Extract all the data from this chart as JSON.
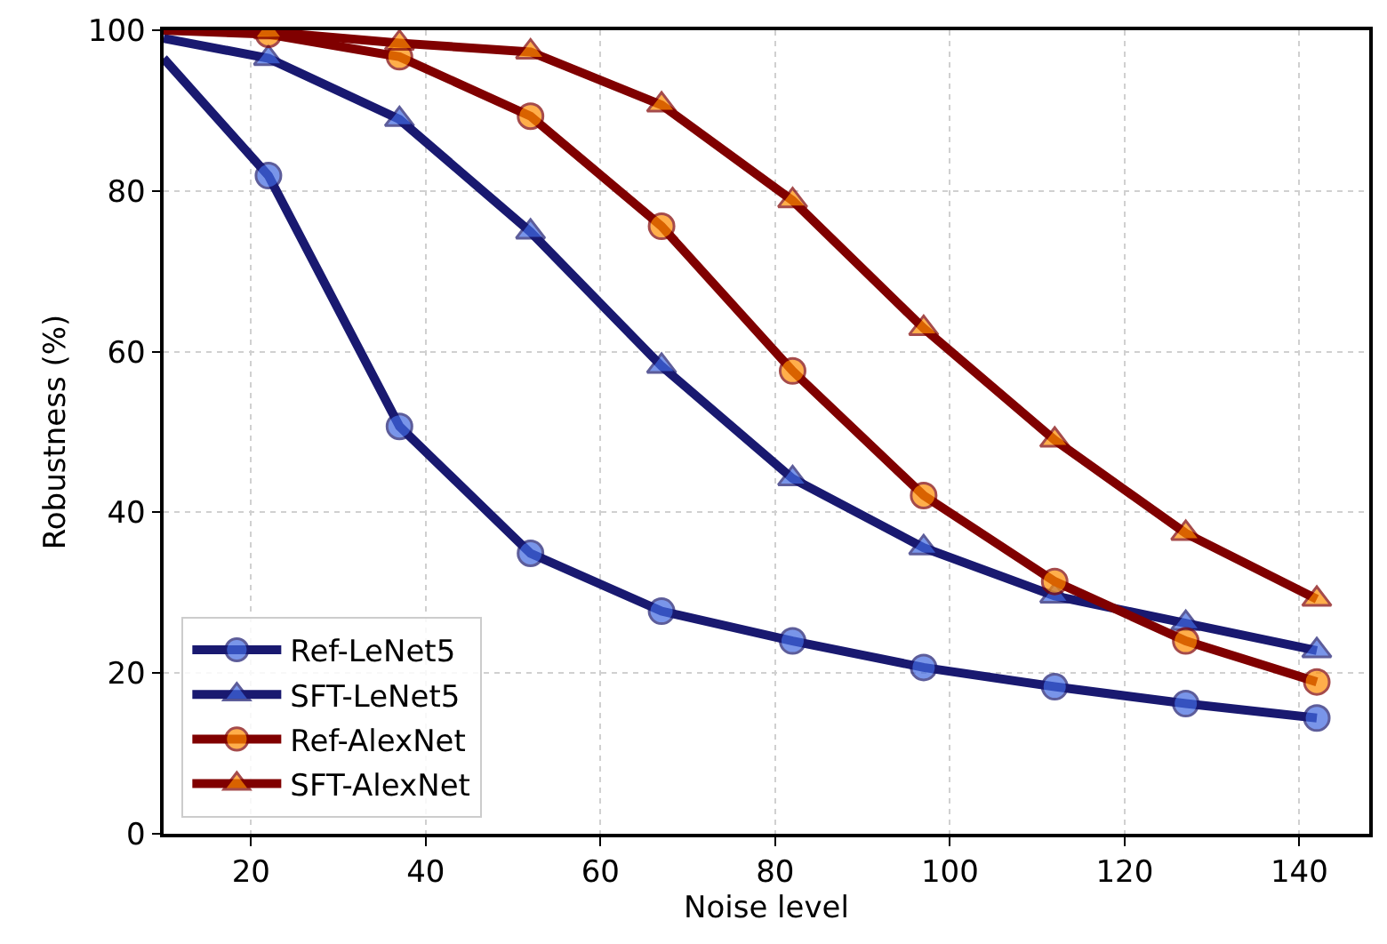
{
  "chart_data": {
    "type": "line",
    "xlabel": "Noise level",
    "ylabel": "Robustness (%)",
    "xlim": [
      10,
      148
    ],
    "xticks": [
      20,
      40,
      60,
      80,
      100,
      120,
      140
    ],
    "ylim": [
      0,
      100
    ],
    "yticks": [
      0,
      20,
      40,
      60,
      80,
      100
    ],
    "grid": true,
    "legend": "bottom left",
    "line_style": "solid",
    "series": [
      {
        "name": "Ref-LeNet5",
        "color": "#191970",
        "marker": "circle",
        "x": [
          10,
          22,
          37,
          52,
          67,
          82,
          97,
          112,
          127,
          142
        ],
        "values": [
          96.5,
          81.9,
          50.7,
          34.9,
          27.7,
          24.0,
          20.7,
          18.3,
          16.2,
          14.4
        ],
        "colors": [
          null,
          "#4169e1",
          "#4169e1",
          "#4169e1",
          "#4169e1",
          "#4169e1",
          "#4169e1",
          "#4169e1",
          "#4169e1",
          "#4169e1"
        ]
      },
      {
        "name": "SFT-LeNet5",
        "color": "#191970",
        "marker": "triangle",
        "x": [
          10,
          22,
          37,
          52,
          67,
          82,
          97,
          112,
          127,
          142
        ],
        "values": [
          99,
          96.5,
          88.9,
          74.9,
          58.2,
          44.2,
          35.6,
          29.6,
          26.2,
          22.8
        ],
        "colors": [
          null,
          "#4169e1",
          "#4169e1",
          "#4169e1",
          "#4169e1",
          "#4169e1",
          "#4169e1",
          "#4169e1",
          "#4169e1",
          "#4169e1"
        ]
      },
      {
        "name": "Ref-AlexNet",
        "color": "#800000",
        "marker": "circle",
        "x": [
          10,
          22,
          37,
          52,
          67,
          82,
          97,
          112,
          127,
          142
        ],
        "values": [
          100,
          99.5,
          96.7,
          89.3,
          75.6,
          57.6,
          42.1,
          31.4,
          24.0,
          18.9
        ],
        "colors": [
          null,
          "#ff8c00",
          "#ff8c00",
          "#ff8c00",
          "#ff8c00",
          "#ff8c00",
          "#ff8c00",
          "#ff8c00",
          "#ff8c00",
          "#ff8c00"
        ]
      },
      {
        "name": "SFT-AlexNet",
        "color": "#800000",
        "marker": "triangle",
        "x": [
          10,
          22,
          37,
          52,
          67,
          82,
          97,
          112,
          127,
          142
        ],
        "values": [
          100,
          99.8,
          98.4,
          97.3,
          90.7,
          78.8,
          62.9,
          49.0,
          37.4,
          29.2
        ],
        "colors": [
          null,
          "#ff8c00",
          "#ff8c00",
          "#ff8c00",
          "#ff8c00",
          "#ff8c00",
          "#ff8c00",
          "#ff8c00",
          "#ff8c00",
          "#ff8c00"
        ]
      }
    ]
  }
}
